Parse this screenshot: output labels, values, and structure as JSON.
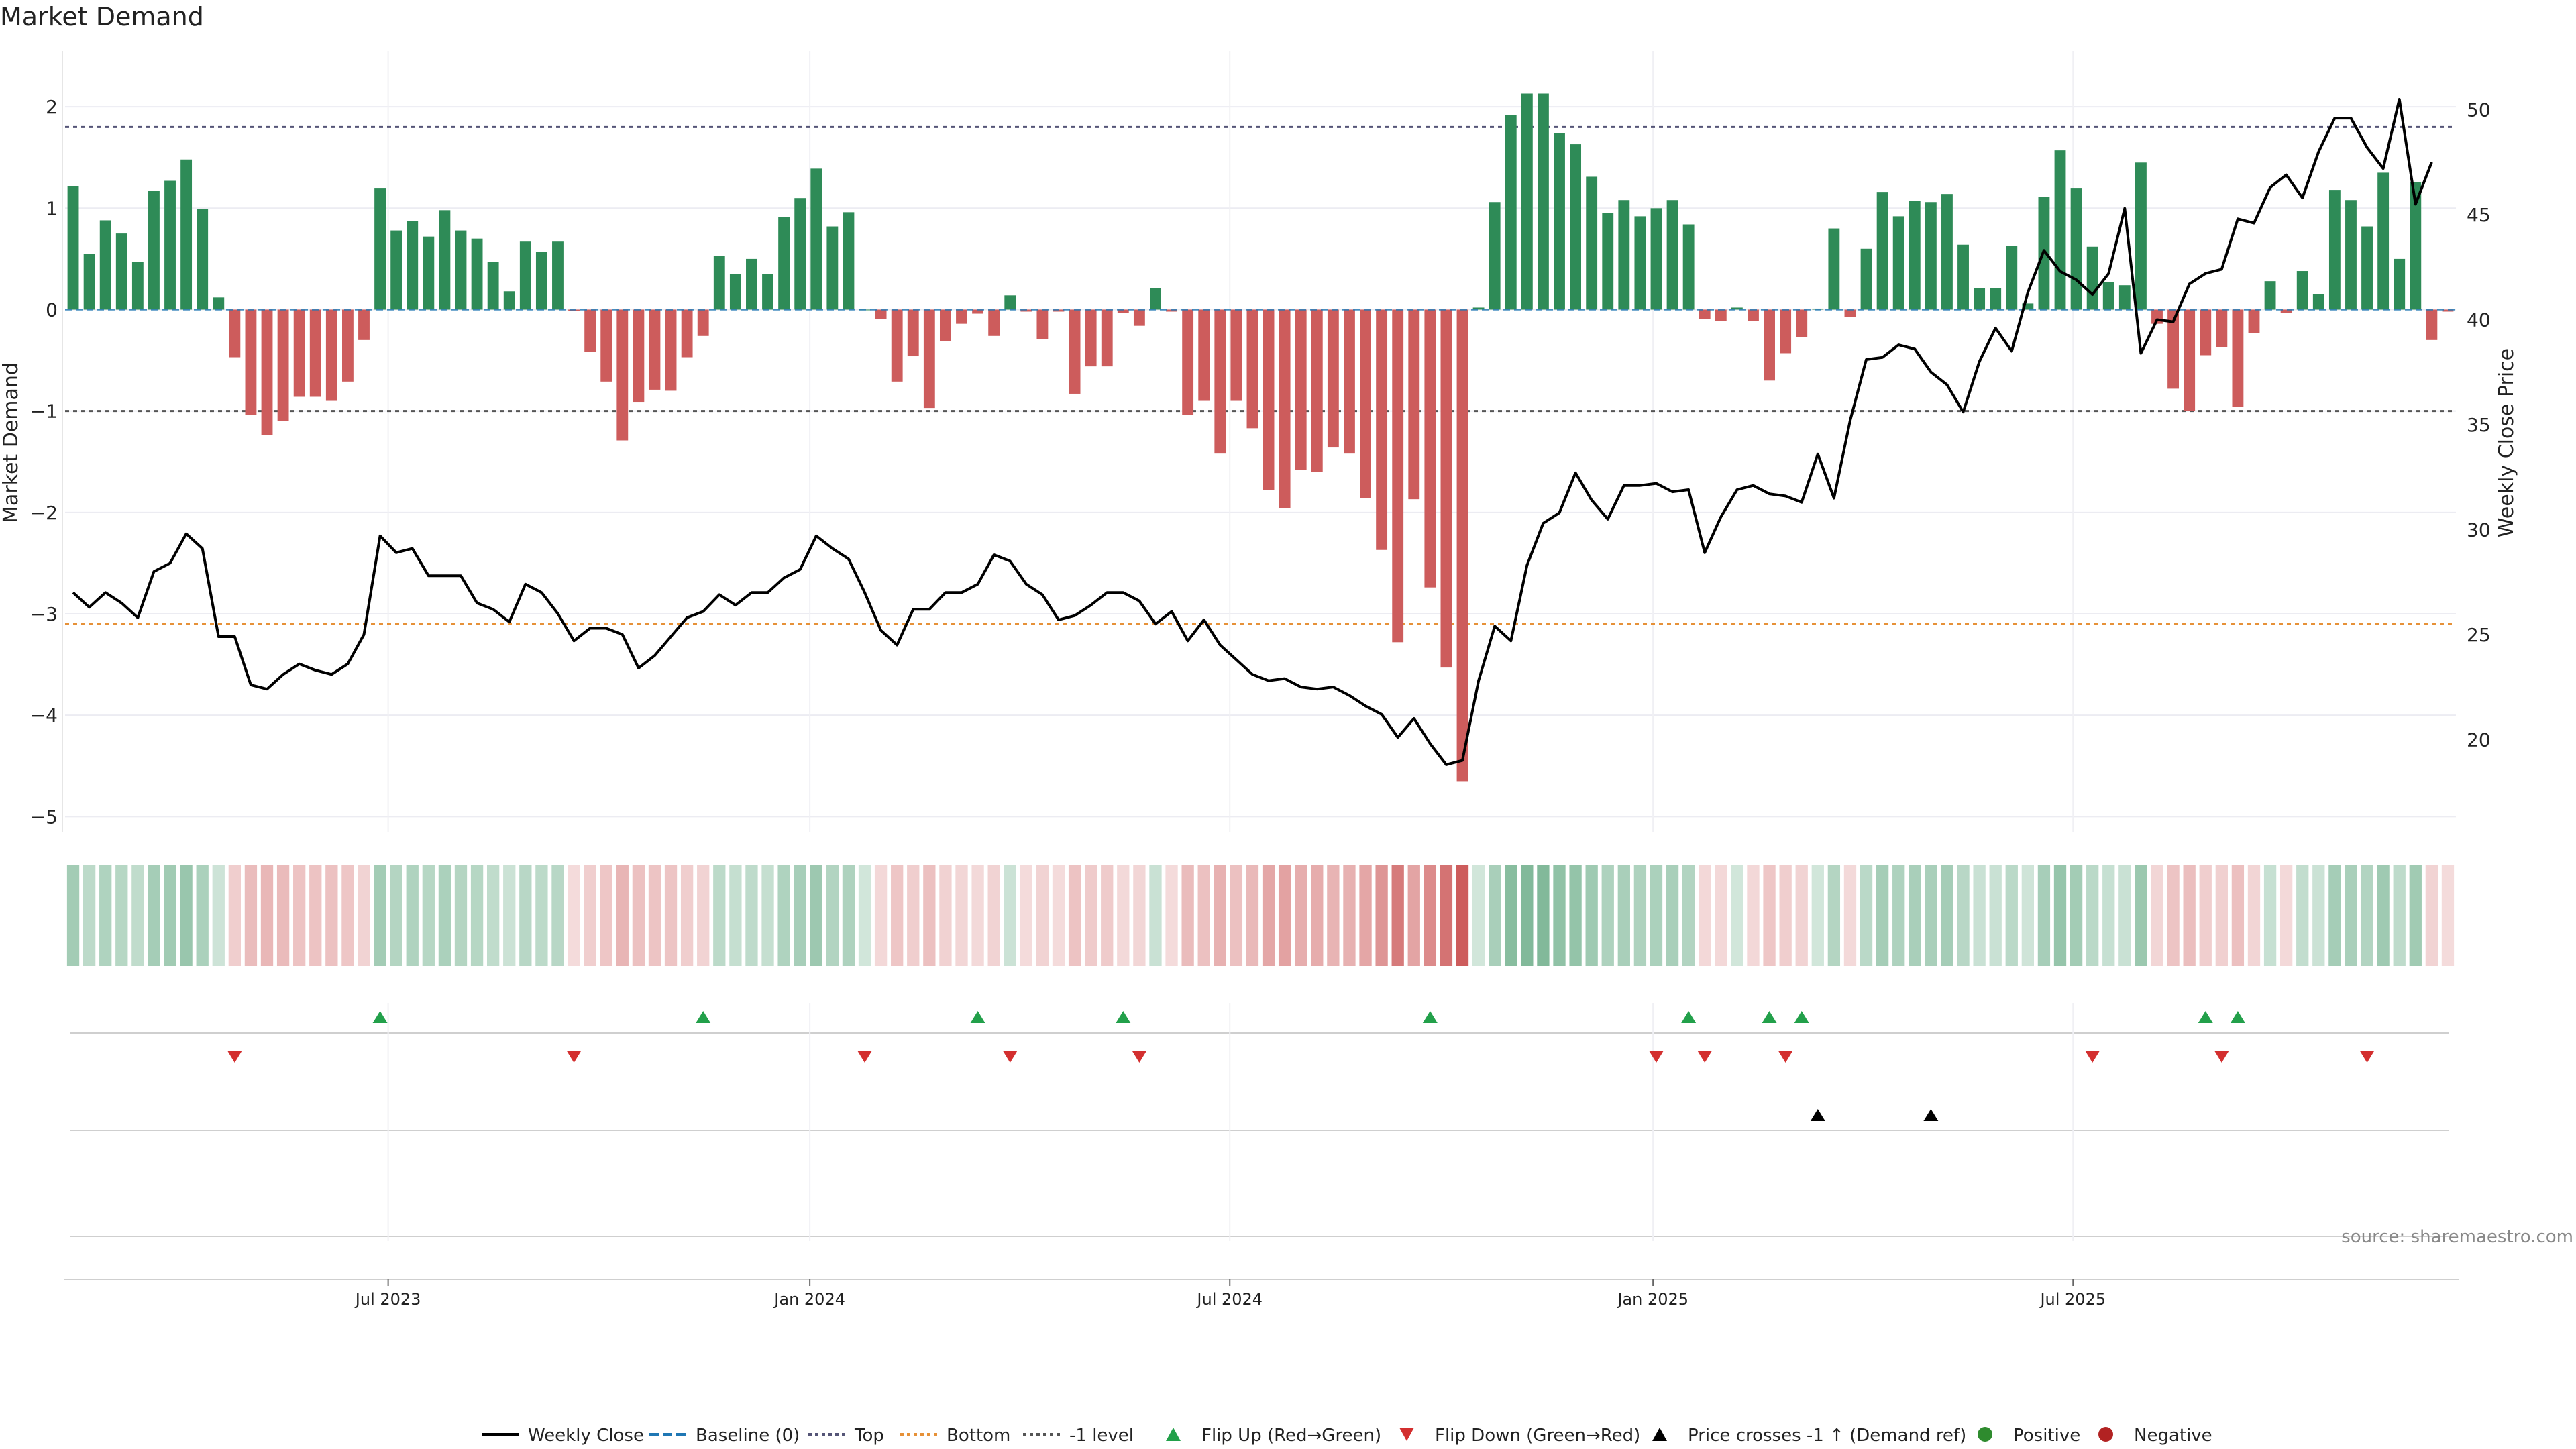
{
  "chart_data": {
    "type": "bar",
    "title": "Market Demand",
    "ylabel_left": "Market Demand",
    "ylabel_right": "Weekly Close Price",
    "ylim_left": [
      -5.15,
      2.55
    ],
    "ylim_right": [
      15.6,
      52.8
    ],
    "yticks_left": [
      2,
      1,
      0,
      -1,
      -2,
      -3,
      -4,
      -5
    ],
    "yticks_left_labels": [
      "2",
      "1",
      "0",
      "−1",
      "−2",
      "−3",
      "−4",
      "−5"
    ],
    "yticks_right": [
      50,
      45,
      40,
      35,
      30,
      25,
      20
    ],
    "x_ticks": [
      {
        "label": "Jul 2023",
        "index": 19.5
      },
      {
        "label": "Jan 2024",
        "index": 45.6
      },
      {
        "label": "Jul 2024",
        "index": 71.6
      },
      {
        "label": "Jan 2025",
        "index": 97.8
      },
      {
        "label": "Jul 2025",
        "index": 123.8
      }
    ],
    "reference_lines": [
      {
        "name": "Top",
        "value": 1.8
      },
      {
        "name": "-1 level",
        "value": -1
      },
      {
        "name": "Bottom",
        "value": -3.1
      }
    ],
    "series": [
      {
        "name": "Market Demand",
        "values": [
          1.22,
          0.55,
          0.88,
          0.75,
          0.47,
          1.17,
          1.27,
          1.48,
          0.99,
          0.12,
          -0.47,
          -1.04,
          -1.24,
          -1.1,
          -0.86,
          -0.86,
          -0.9,
          -0.71,
          -0.3,
          1.2,
          0.78,
          0.87,
          0.72,
          0.98,
          0.78,
          0.7,
          0.47,
          0.18,
          0.67,
          0.57,
          0.67,
          -0.01,
          -0.42,
          -0.71,
          -1.29,
          -0.91,
          -0.79,
          -0.8,
          -0.47,
          -0.26,
          0.53,
          0.35,
          0.5,
          0.35,
          0.91,
          1.1,
          1.39,
          0.82,
          0.96,
          0.0,
          -0.09,
          -0.71,
          -0.46,
          -0.97,
          -0.31,
          -0.14,
          -0.04,
          -0.26,
          0.14,
          -0.02,
          -0.29,
          -0.02,
          -0.83,
          -0.56,
          -0.56,
          -0.03,
          -0.16,
          0.21,
          -0.02,
          -1.04,
          -0.9,
          -1.42,
          -0.9,
          -1.17,
          -1.78,
          -1.96,
          -1.58,
          -1.6,
          -1.36,
          -1.42,
          -1.86,
          -2.37,
          -3.28,
          -1.87,
          -2.74,
          -3.53,
          -4.65,
          0.02,
          1.06,
          1.92,
          2.13,
          2.13,
          1.74,
          1.63,
          1.31,
          0.95,
          1.08,
          0.92,
          1.0,
          1.08,
          0.84,
          -0.09,
          -0.11,
          0.02,
          -0.11,
          -0.7,
          -0.43,
          -0.27,
          0.01,
          0.8,
          -0.07,
          0.6,
          1.16,
          0.92,
          1.07,
          1.06,
          1.14,
          0.64,
          0.21,
          0.21,
          0.63,
          0.06,
          1.11,
          1.57,
          1.2,
          0.62,
          0.27,
          0.24,
          1.45,
          -0.14,
          -0.78,
          -1.0,
          -0.45,
          -0.37,
          -0.96,
          -0.23,
          0.28,
          -0.03,
          0.38,
          0.15,
          1.18,
          1.08,
          0.82,
          1.35,
          0.5,
          1.26,
          -0.3,
          -0.02
        ]
      },
      {
        "name": "Weekly Close",
        "values": [
          27.0,
          26.3,
          27.0,
          26.5,
          25.8,
          28.0,
          28.4,
          29.8,
          29.1,
          24.9,
          24.9,
          22.6,
          22.4,
          23.1,
          23.6,
          23.3,
          23.1,
          23.6,
          25.0,
          29.7,
          28.9,
          29.1,
          27.8,
          27.8,
          27.8,
          26.5,
          26.2,
          25.6,
          27.4,
          27.0,
          26.0,
          24.7,
          25.3,
          25.3,
          25.0,
          23.4,
          24.0,
          24.9,
          25.8,
          26.1,
          26.9,
          26.4,
          27.0,
          27.0,
          27.7,
          28.1,
          29.7,
          29.1,
          28.6,
          27.0,
          25.2,
          24.5,
          26.2,
          26.2,
          27.0,
          27.0,
          27.4,
          28.8,
          28.5,
          27.4,
          26.9,
          25.7,
          25.9,
          26.4,
          27.0,
          27.0,
          26.6,
          25.5,
          26.1,
          24.7,
          25.7,
          24.5,
          23.8,
          23.1,
          22.8,
          22.9,
          22.5,
          22.4,
          22.5,
          22.1,
          21.6,
          21.2,
          20.1,
          21.0,
          19.8,
          18.8,
          19.0,
          22.8,
          25.4,
          24.7,
          28.3,
          30.3,
          30.8,
          32.7,
          31.4,
          30.5,
          32.1,
          32.1,
          32.2,
          31.8,
          31.9,
          28.9,
          30.6,
          31.9,
          32.1,
          31.7,
          31.6,
          31.3,
          33.6,
          31.5,
          35.2,
          38.1,
          38.2,
          38.8,
          38.6,
          37.5,
          36.9,
          35.6,
          38.0,
          39.6,
          38.5,
          41.3,
          43.3,
          42.3,
          41.9,
          41.2,
          42.2,
          45.3,
          38.4,
          40.0,
          39.9,
          41.7,
          42.2,
          42.4,
          44.8,
          44.6,
          46.3,
          46.9,
          45.8,
          48.0,
          49.6,
          49.6,
          48.2,
          47.2,
          50.5,
          45.5,
          47.5
        ]
      }
    ],
    "signals": {
      "flip_up": [
        19,
        39,
        56,
        65,
        84,
        100,
        105,
        107,
        132,
        134
      ],
      "flip_down": [
        10,
        31,
        49,
        58,
        66,
        98,
        101,
        106,
        125,
        133,
        142
      ],
      "price_crosses": [
        108,
        115
      ]
    },
    "colors": {
      "positive_bar": "#2e8b57",
      "negative_bar": "#cd5c5c",
      "price_line": "#000000",
      "top_line": "#555577",
      "minus1_line": "#555555",
      "bottom_line": "#e69138",
      "baseline": "#1f77b4",
      "flip_up": "#22a04a",
      "flip_down": "#d32f2f",
      "positive_dot": "#2e8b2e",
      "negative_dot": "#b22222"
    },
    "legend": [
      {
        "label": "Weekly Close",
        "kind": "line",
        "style": "solid",
        "color": "#000000"
      },
      {
        "label": "Baseline (0)",
        "kind": "line",
        "style": "dashed",
        "color": "#1f77b4"
      },
      {
        "label": "Top",
        "kind": "line",
        "style": "dotted",
        "color": "#555577"
      },
      {
        "label": "Bottom",
        "kind": "line",
        "style": "dotted",
        "color": "#e69138"
      },
      {
        "label": "-1 level",
        "kind": "line",
        "style": "dotted",
        "color": "#555555"
      },
      {
        "label": "Flip Up (Red→Green)",
        "kind": "tri-up",
        "color": "#22a04a"
      },
      {
        "label": "Flip Down (Green→Red)",
        "kind": "tri-down",
        "color": "#d32f2f"
      },
      {
        "label": "Price crosses -1 ↑ (Demand ref)",
        "kind": "tri-up",
        "color": "#000000"
      },
      {
        "label": "Positive",
        "kind": "dot",
        "color": "#2e8b2e"
      },
      {
        "label": "Negative",
        "kind": "dot",
        "color": "#b22222"
      }
    ],
    "legend_placement": "bottom-center",
    "source": "source: sharemaestro.com"
  }
}
